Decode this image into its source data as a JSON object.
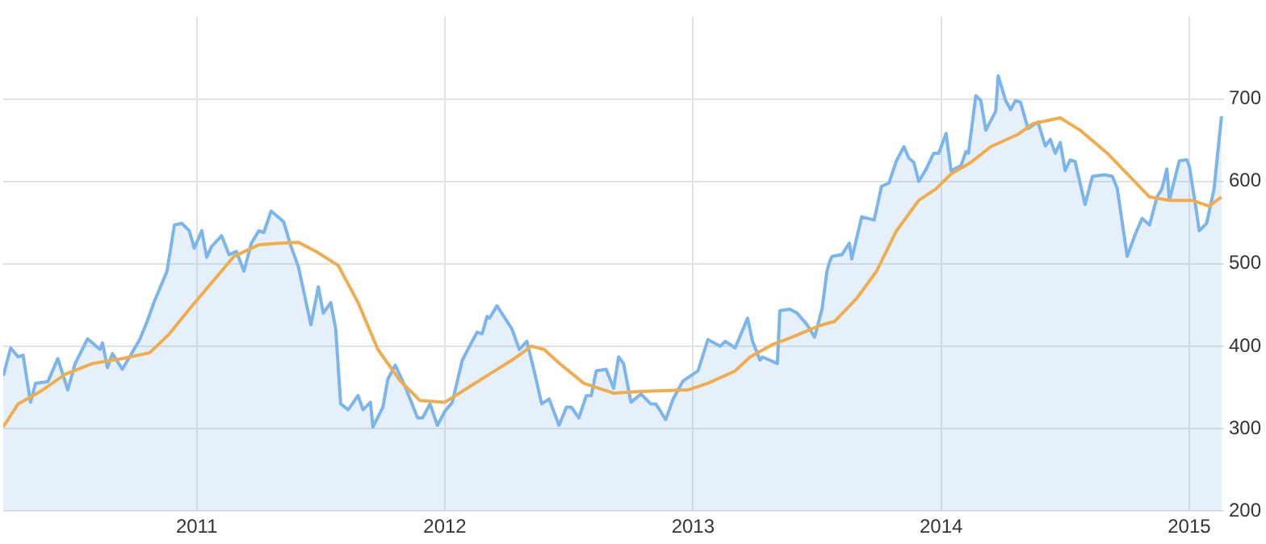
{
  "chart_data": {
    "type": "area",
    "xlim": [
      2010.22,
      2015.14
    ],
    "xticks": [
      2011,
      2012,
      2013,
      2014,
      2015
    ],
    "ylim": [
      200,
      800
    ],
    "yticks": [
      200,
      300,
      400,
      500,
      600,
      700
    ],
    "grid": true,
    "series": [
      {
        "color": "#7cb5ec",
        "x": [
          2010.22,
          2010.25,
          2010.28,
          2010.3,
          2010.33,
          2010.35,
          2010.4,
          2010.44,
          2010.48,
          2010.51,
          2010.56,
          2010.61,
          2010.62,
          2010.64,
          2010.66,
          2010.7,
          2010.77,
          2010.8,
          2010.83,
          2010.88,
          2010.91,
          2010.94,
          2010.97,
          2010.99,
          2011.02,
          2011.04,
          2011.06,
          2011.1,
          2011.13,
          2011.16,
          2011.19,
          2011.22,
          2011.25,
          2011.27,
          2011.3,
          2011.35,
          2011.38,
          2011.41,
          2011.46,
          2011.49,
          2011.51,
          2011.54,
          2011.56,
          2011.58,
          2011.61,
          2011.65,
          2011.67,
          2011.7,
          2011.71,
          2011.75,
          2011.77,
          2011.8,
          2011.84,
          2011.89,
          2011.91,
          2011.94,
          2011.97,
          2012.0,
          2012.03,
          2012.07,
          2012.11,
          2012.13,
          2012.15,
          2012.17,
          2012.18,
          2012.21,
          2012.27,
          2012.3,
          2012.33,
          2012.36,
          2012.39,
          2012.42,
          2012.46,
          2012.49,
          2012.51,
          2012.54,
          2012.57,
          2012.59,
          2012.61,
          2012.65,
          2012.68,
          2012.7,
          2012.72,
          2012.75,
          2012.79,
          2012.83,
          2012.85,
          2012.89,
          2012.92,
          2012.96,
          2013.02,
          2013.06,
          2013.11,
          2013.13,
          2013.17,
          2013.22,
          2013.24,
          2013.27,
          2013.28,
          2013.34,
          2013.35,
          2013.39,
          2013.42,
          2013.46,
          2013.49,
          2013.52,
          2013.54,
          2013.55,
          2013.56,
          2013.6,
          2013.63,
          2013.64,
          2013.68,
          2013.73,
          2013.76,
          2013.79,
          2013.82,
          2013.85,
          2013.87,
          2013.89,
          2013.91,
          2013.94,
          2013.97,
          2013.99,
          2014.02,
          2014.04,
          2014.08,
          2014.1,
          2014.11,
          2014.14,
          2014.16,
          2014.18,
          2014.22,
          2014.23,
          2014.26,
          2014.28,
          2014.3,
          2014.32,
          2014.35,
          2014.39,
          2014.42,
          2014.44,
          2014.46,
          2014.48,
          2014.5,
          2014.52,
          2014.54,
          2014.58,
          2014.61,
          2014.66,
          2014.69,
          2014.71,
          2014.75,
          2014.78,
          2014.81,
          2014.84,
          2014.87,
          2014.89,
          2014.91,
          2014.92,
          2014.96,
          2014.99,
          2015.0,
          2015.03,
          2015.04,
          2015.07,
          2015.1,
          2015.13
        ],
        "values": [
          364,
          398,
          387,
          389,
          332,
          355,
          357,
          385,
          347,
          379,
          409,
          396,
          404,
          374,
          391,
          372,
          408,
          430,
          455,
          491,
          547,
          549,
          540,
          519,
          540,
          508,
          521,
          534,
          511,
          515,
          491,
          525,
          540,
          538,
          564,
          551,
          521,
          496,
          426,
          472,
          440,
          453,
          421,
          330,
          323,
          340,
          323,
          332,
          302,
          326,
          360,
          377,
          351,
          313,
          313,
          330,
          304,
          321,
          332,
          383,
          406,
          417,
          415,
          436,
          434,
          449,
          421,
          396,
          406,
          370,
          330,
          336,
          304,
          326,
          326,
          313,
          340,
          340,
          370,
          372,
          349,
          387,
          379,
          332,
          342,
          330,
          330,
          311,
          336,
          358,
          370,
          408,
          400,
          406,
          398,
          434,
          406,
          383,
          387,
          379,
          443,
          445,
          440,
          426,
          411,
          445,
          491,
          502,
          509,
          511,
          525,
          506,
          557,
          553,
          594,
          598,
          625,
          642,
          628,
          623,
          600,
          615,
          634,
          634,
          658,
          613,
          619,
          636,
          634,
          704,
          698,
          662,
          685,
          728,
          698,
          687,
          698,
          696,
          664,
          672,
          643,
          651,
          634,
          647,
          613,
          626,
          624,
          572,
          606,
          608,
          606,
          591,
          509,
          534,
          555,
          547,
          581,
          591,
          615,
          577,
          625,
          626,
          619,
          562,
          540,
          549,
          591,
          679
        ]
      },
      {
        "type": "line",
        "color": "#f0ad4e",
        "x": [
          2010.22,
          2010.28,
          2010.37,
          2010.47,
          2010.58,
          2010.7,
          2010.81,
          2010.89,
          2010.97,
          2011.06,
          2011.15,
          2011.25,
          2011.34,
          2011.41,
          2011.48,
          2011.57,
          2011.65,
          2011.73,
          2011.82,
          2011.9,
          2012.0,
          2012.1,
          2012.2,
          2012.27,
          2012.35,
          2012.4,
          2012.47,
          2012.56,
          2012.68,
          2012.79,
          2012.98,
          2013.06,
          2013.17,
          2013.23,
          2013.32,
          2013.4,
          2013.51,
          2013.57,
          2013.66,
          2013.74,
          2013.82,
          2013.91,
          2013.98,
          2014.04,
          2014.12,
          2014.2,
          2014.31,
          2014.37,
          2014.48,
          2014.56,
          2014.67,
          2014.75,
          2014.84,
          2014.92,
          2015.01,
          2015.08,
          2015.13
        ],
        "values": [
          302,
          330,
          345,
          366,
          379,
          385,
          392,
          415,
          445,
          477,
          509,
          523,
          525,
          526,
          515,
          498,
          453,
          396,
          358,
          334,
          332,
          351,
          370,
          383,
          400,
          396,
          377,
          355,
          343,
          345,
          347,
          355,
          370,
          387,
          402,
          411,
          425,
          430,
          458,
          491,
          540,
          577,
          591,
          609,
          623,
          642,
          657,
          670,
          677,
          662,
          634,
          609,
          581,
          577,
          577,
          570,
          581
        ]
      }
    ]
  }
}
